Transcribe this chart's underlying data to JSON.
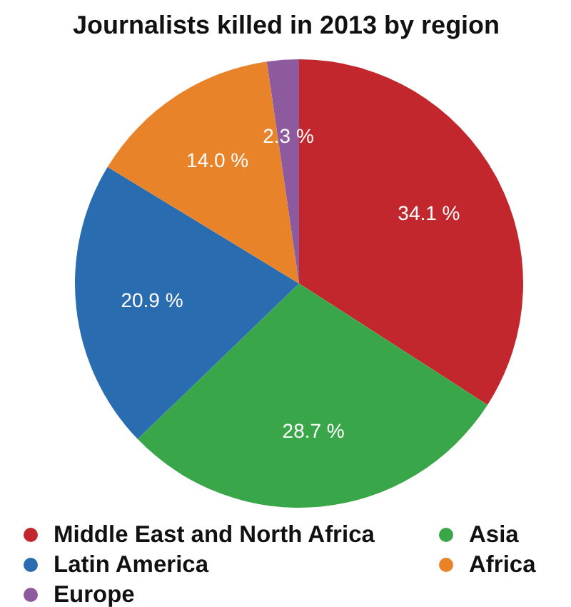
{
  "chart_data": {
    "type": "pie",
    "title": "Journalists killed in 2013 by region",
    "categories": [
      "Middle East and North Africa",
      "Asia",
      "Latin America",
      "Africa",
      "Europe"
    ],
    "values": [
      34.1,
      28.7,
      20.9,
      14.0,
      2.3
    ],
    "colors": [
      "#c1272d",
      "#3aa64a",
      "#2a6cb0",
      "#e8832a",
      "#8e5a9e"
    ],
    "value_labels": [
      "34.1 %",
      "28.7 %",
      "20.9 %",
      "14.0 %",
      "2.3 %"
    ],
    "legend": "bottom"
  }
}
